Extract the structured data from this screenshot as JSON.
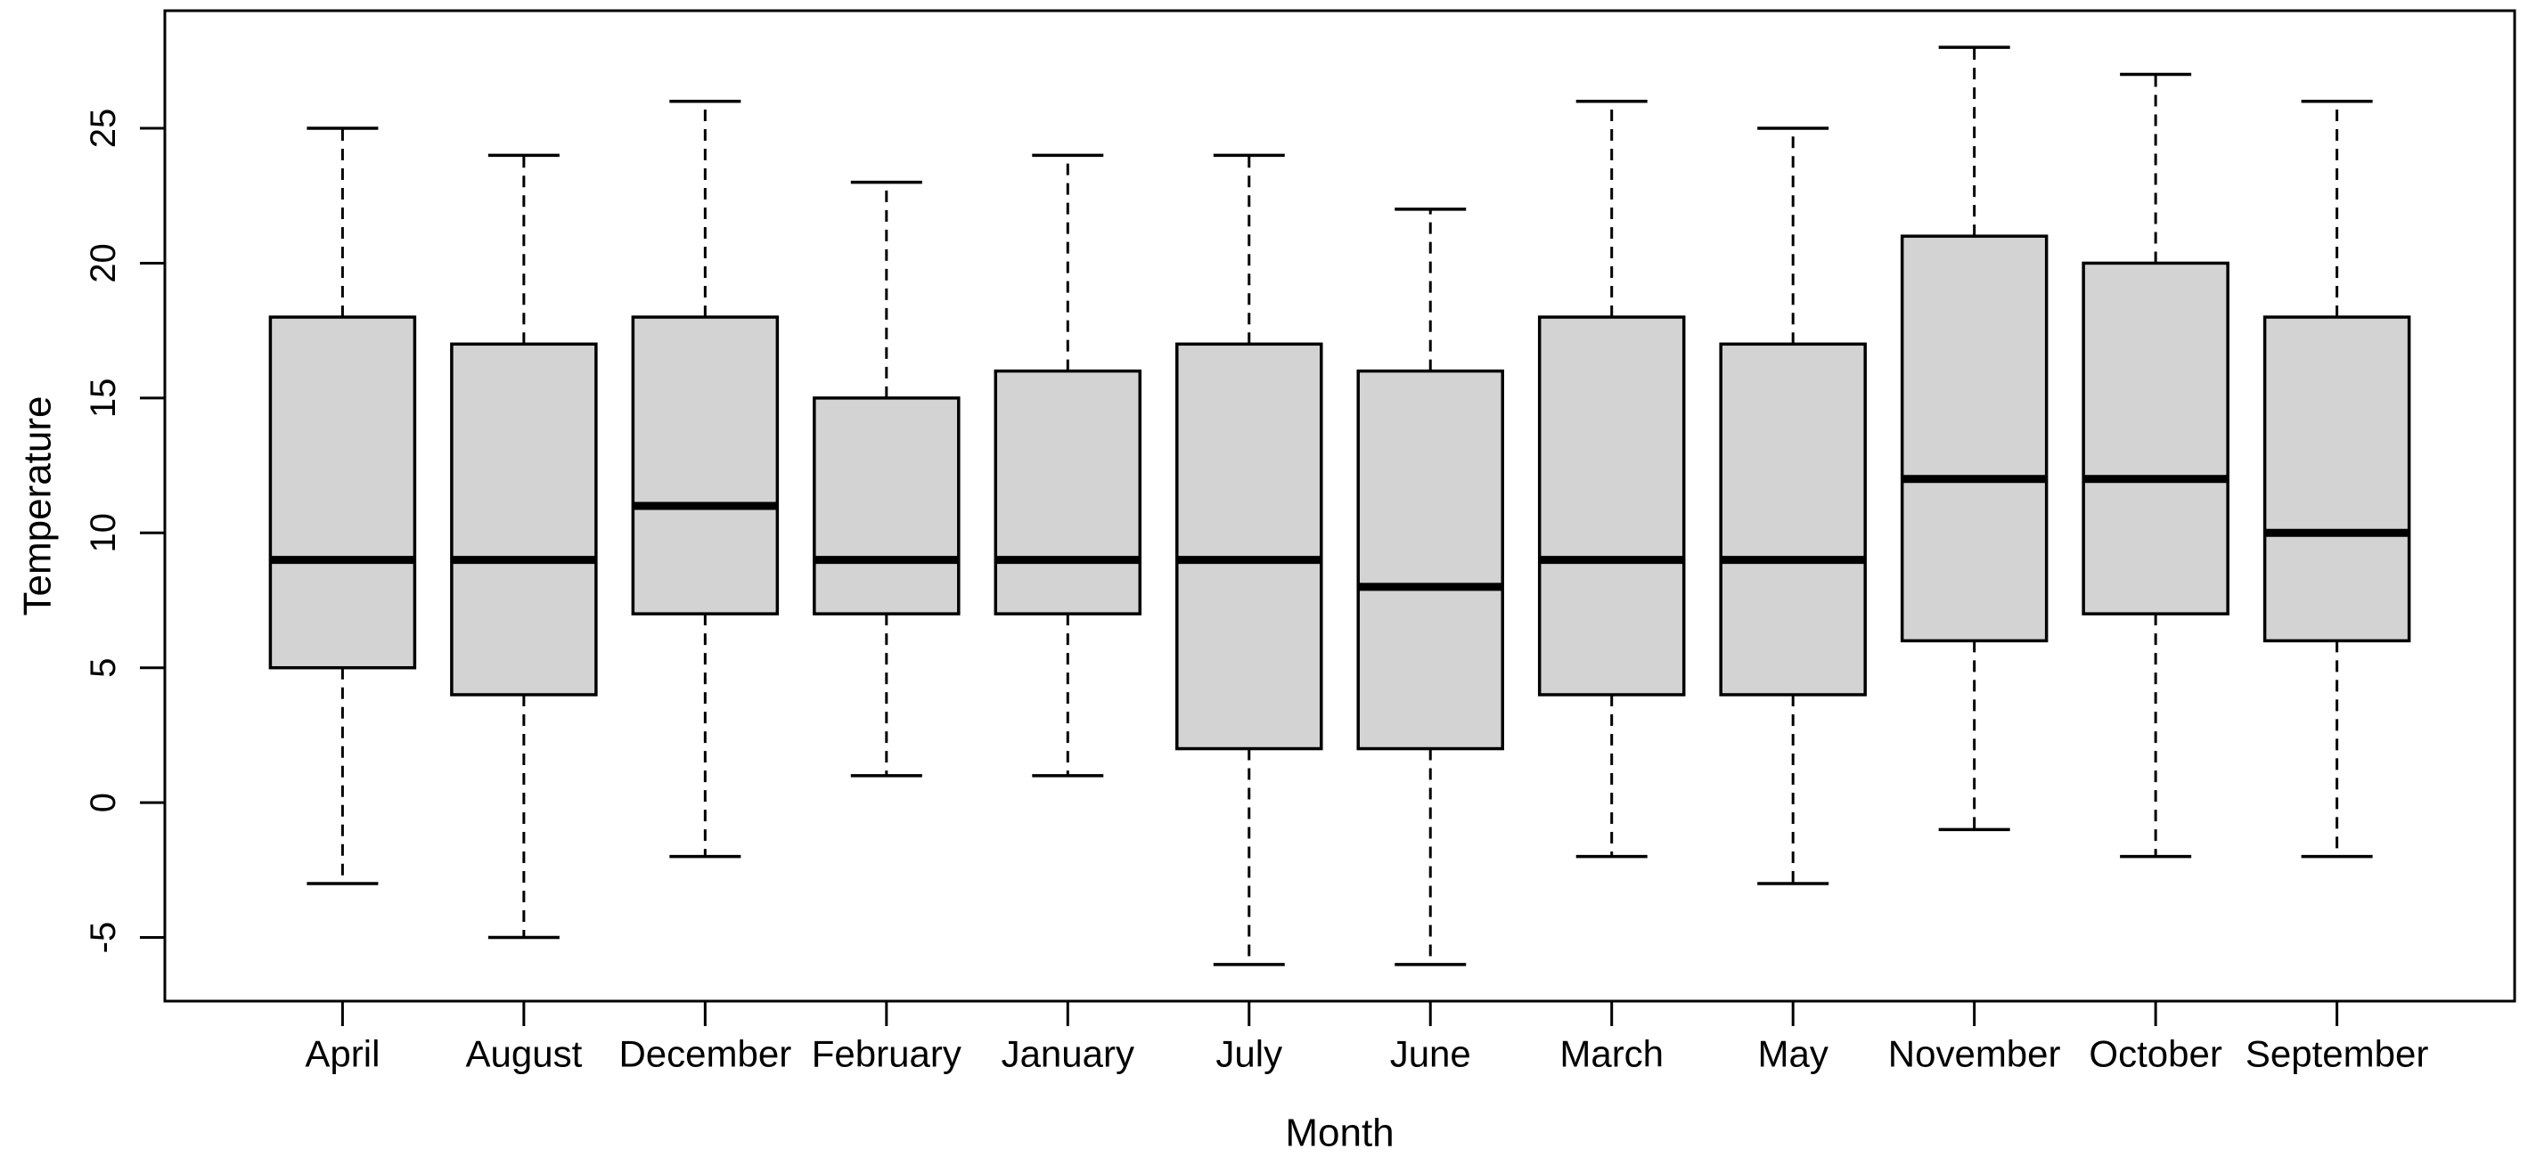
{
  "chart_data": {
    "type": "boxplot",
    "title": "",
    "xlabel": "Month",
    "ylabel": "Temperature",
    "categories": [
      "April",
      "August",
      "December",
      "February",
      "January",
      "July",
      "June",
      "March",
      "May",
      "November",
      "October",
      "September"
    ],
    "series": [
      {
        "name": "April",
        "low": -3,
        "q1": 5,
        "median": 9,
        "q3": 18,
        "high": 25
      },
      {
        "name": "August",
        "low": -5,
        "q1": 4,
        "median": 9,
        "q3": 17,
        "high": 24
      },
      {
        "name": "December",
        "low": -2,
        "q1": 7,
        "median": 11,
        "q3": 18,
        "high": 26
      },
      {
        "name": "February",
        "low": 1,
        "q1": 7,
        "median": 9,
        "q3": 15,
        "high": 23
      },
      {
        "name": "January",
        "low": 1,
        "q1": 7,
        "median": 9,
        "q3": 16,
        "high": 24
      },
      {
        "name": "July",
        "low": -6,
        "q1": 2,
        "median": 9,
        "q3": 17,
        "high": 24
      },
      {
        "name": "June",
        "low": -6,
        "q1": 2,
        "median": 8,
        "q3": 16,
        "high": 22
      },
      {
        "name": "March",
        "low": -2,
        "q1": 4,
        "median": 9,
        "q3": 18,
        "high": 26
      },
      {
        "name": "May",
        "low": -3,
        "q1": 4,
        "median": 9,
        "q3": 17,
        "high": 25
      },
      {
        "name": "November",
        "low": -1,
        "q1": 6,
        "median": 12,
        "q3": 21,
        "high": 28
      },
      {
        "name": "October",
        "low": -2,
        "q1": 7,
        "median": 12,
        "q3": 20,
        "high": 27
      },
      {
        "name": "September",
        "low": -2,
        "q1": 6,
        "median": 10,
        "q3": 18,
        "high": 26
      }
    ],
    "y_ticks": [
      -5,
      0,
      5,
      10,
      15,
      20,
      25
    ],
    "ylim": [
      -7.36,
      29.36
    ],
    "grid": false,
    "legend": "none",
    "colors": {
      "box_fill": "#d3d3d3",
      "stroke": "#000000",
      "background": "#ffffff"
    }
  }
}
